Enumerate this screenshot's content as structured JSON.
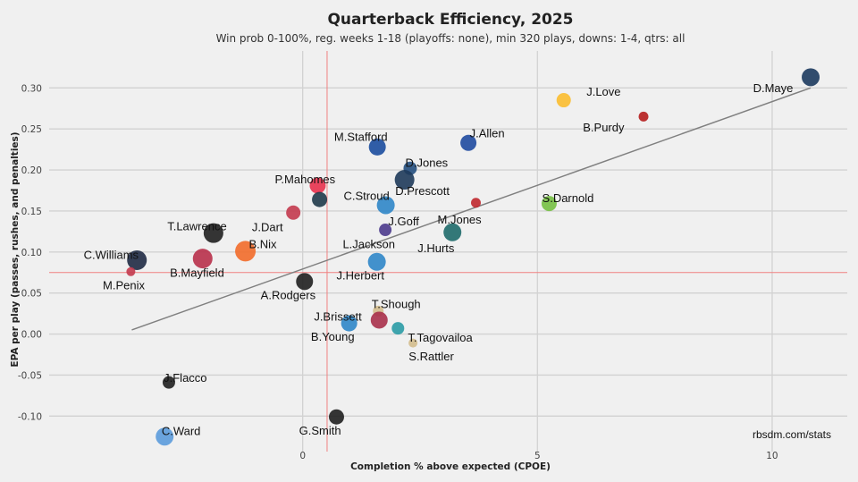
{
  "chart_data": {
    "type": "scatter",
    "title": "Quarterback Efficiency, 2025",
    "subtitle": "Win prob 0-100%, reg. weeks 1-18 (playoffs: none), min 320 plays, downs: 1-4, qtrs: all",
    "xlabel": "Completion % above expected (CPOE)",
    "ylabel": "EPA per play (passes, rushes, and penalties)",
    "xlim": [
      -5.4,
      11.6
    ],
    "ylim": [
      -0.152,
      0.345
    ],
    "xticks": [
      0,
      5,
      10
    ],
    "xtick_labels": [
      "0",
      "5",
      "10"
    ],
    "yticks": [
      0.3,
      0.25,
      0.2,
      0.15,
      0.1,
      0.05,
      0.0,
      -0.05,
      -0.1
    ],
    "ytick_labels": [
      "0.30",
      "0.25",
      "0.20",
      "0.15",
      "0.10",
      "0.05",
      "0.00",
      "-0.05",
      "-0.10"
    ],
    "grid": true,
    "mean_lines": {
      "x": 0.52,
      "y": 0.075,
      "color": "#f08080"
    },
    "trend_line": {
      "x": [
        -3.64,
        10.82
      ],
      "y": [
        0.005,
        0.3
      ],
      "color": "#808080"
    },
    "credit": "rbsdm.com/stats",
    "points": [
      {
        "name": "D.Maye",
        "x": 10.82,
        "y": 0.313,
        "color": "#1c3a5e",
        "size": 1.0,
        "lx": -0.8,
        "ly": -0.014,
        "anchor": "middle"
      },
      {
        "name": "J.Love",
        "x": 5.56,
        "y": 0.285,
        "color": "#fbbc2f",
        "size": 0.8,
        "lx": 0.85,
        "ly": 0.01,
        "anchor": "middle"
      },
      {
        "name": "B.Purdy",
        "x": 7.26,
        "y": 0.265,
        "color": "#b51c1c",
        "size": 0.55,
        "lx": -0.85,
        "ly": -0.014,
        "anchor": "middle"
      },
      {
        "name": "J.Allen",
        "x": 3.53,
        "y": 0.233,
        "color": "#1f4aa0",
        "size": 0.9,
        "lx": 0.4,
        "ly": 0.011,
        "anchor": "middle"
      },
      {
        "name": "M.Stafford",
        "x": 1.59,
        "y": 0.228,
        "color": "#1b4c9f",
        "size": 0.95,
        "lx": -0.35,
        "ly": 0.012,
        "anchor": "middle"
      },
      {
        "name": "D.Jones",
        "x": 2.29,
        "y": 0.202,
        "color": "#244f80",
        "size": 0.75,
        "lx": 0.35,
        "ly": 0.006,
        "anchor": "middle"
      },
      {
        "name": "D.Prescott",
        "x": 2.17,
        "y": 0.188,
        "color": "#1e3a5a",
        "size": 1.1,
        "lx": 0.38,
        "ly": -0.014,
        "anchor": "middle"
      },
      {
        "name": "P.Mahomes",
        "x": 0.32,
        "y": 0.181,
        "color": "#e8314d",
        "size": 0.9,
        "lx": -0.27,
        "ly": 0.007,
        "anchor": "middle"
      },
      {
        "name": "C.Stroud",
        "x": 0.36,
        "y": 0.164,
        "color": "#1f3a4a",
        "size": 0.85,
        "lx": 1.0,
        "ly": 0.004,
        "anchor": "middle"
      },
      {
        "name": "J.Goff",
        "x": 1.77,
        "y": 0.157,
        "color": "#2f86c8",
        "size": 1.0,
        "lx": 0.38,
        "ly": -0.02,
        "anchor": "middle"
      },
      {
        "name": "S.Darnold",
        "x": 5.25,
        "y": 0.159,
        "color": "#75c043",
        "size": 0.85,
        "lx": 0.4,
        "ly": 0.006,
        "anchor": "middle"
      },
      {
        "name": "M.Jones",
        "x": 3.69,
        "y": 0.16,
        "color": "#c0282d",
        "size": 0.55,
        "lx": -0.35,
        "ly": -0.021,
        "anchor": "middle"
      },
      {
        "name": "J.Dart",
        "x": -0.2,
        "y": 0.148,
        "color": "#c33a4e",
        "size": 0.8,
        "lx": -0.55,
        "ly": -0.018,
        "anchor": "middle"
      },
      {
        "name": "L.Jackson",
        "x": 1.76,
        "y": 0.127,
        "color": "#4b3a8c",
        "size": 0.7,
        "lx": -0.35,
        "ly": -0.018,
        "anchor": "middle"
      },
      {
        "name": "J.Hurts",
        "x": 3.19,
        "y": 0.124,
        "color": "#1e6a6a",
        "size": 1.0,
        "lx": -0.35,
        "ly": -0.02,
        "anchor": "middle"
      },
      {
        "name": "T.Lawrence",
        "x": -1.9,
        "y": 0.123,
        "color": "#1f1f1f",
        "size": 1.1,
        "lx": -0.35,
        "ly": 0.008,
        "anchor": "middle"
      },
      {
        "name": "B.Nix",
        "x": -1.22,
        "y": 0.101,
        "color": "#f26b2a",
        "size": 1.15,
        "lx": 0.37,
        "ly": 0.008,
        "anchor": "middle"
      },
      {
        "name": "C.Williams",
        "x": -3.53,
        "y": 0.09,
        "color": "#1f2a44",
        "size": 1.1,
        "lx": -0.55,
        "ly": 0.006,
        "anchor": "middle"
      },
      {
        "name": "B.Mayfield",
        "x": -2.13,
        "y": 0.092,
        "color": "#b8304a",
        "size": 1.1,
        "lx": -0.12,
        "ly": -0.018,
        "anchor": "middle"
      },
      {
        "name": "J.Herbert",
        "x": 1.58,
        "y": 0.088,
        "color": "#2f86c8",
        "size": 1.0,
        "lx": -0.35,
        "ly": -0.017,
        "anchor": "middle"
      },
      {
        "name": "M.Penix",
        "x": -3.66,
        "y": 0.076,
        "color": "#c33a4e",
        "size": 0.5,
        "lx": -0.15,
        "ly": -0.017,
        "anchor": "middle"
      },
      {
        "name": "A.Rodgers",
        "x": 0.04,
        "y": 0.064,
        "color": "#1f1f1f",
        "size": 0.95,
        "lx": -0.35,
        "ly": -0.017,
        "anchor": "middle"
      },
      {
        "name": "T.Shough",
        "x": 1.61,
        "y": 0.028,
        "color": "#d3bc8d",
        "size": 0.6,
        "lx": 0.38,
        "ly": 0.008,
        "anchor": "middle"
      },
      {
        "name": "J.Brissett",
        "x": 1.63,
        "y": 0.017,
        "color": "#a8304a",
        "size": 0.95,
        "lx": -0.88,
        "ly": 0.004,
        "anchor": "middle"
      },
      {
        "name": "B.Young",
        "x": 0.99,
        "y": 0.013,
        "color": "#2f86c8",
        "size": 0.9,
        "lx": -0.35,
        "ly": -0.017,
        "anchor": "middle"
      },
      {
        "name": "T.Tagovailoa",
        "x": 2.03,
        "y": 0.007,
        "color": "#2a9ba5",
        "size": 0.7,
        "lx": 0.9,
        "ly": -0.012,
        "anchor": "middle"
      },
      {
        "name": "S.Rattler",
        "x": 2.35,
        "y": -0.011,
        "color": "#d3bc8d",
        "size": 0.5,
        "lx": 0.39,
        "ly": -0.017,
        "anchor": "middle"
      },
      {
        "name": "J.Flacco",
        "x": -2.85,
        "y": -0.059,
        "color": "#1f1f1f",
        "size": 0.7,
        "lx": 0.35,
        "ly": 0.005,
        "anchor": "middle"
      },
      {
        "name": "G.Smith",
        "x": 0.72,
        "y": -0.101,
        "color": "#1f1f1f",
        "size": 0.85,
        "lx": -0.35,
        "ly": -0.017,
        "anchor": "middle"
      },
      {
        "name": "C.Ward",
        "x": -2.94,
        "y": -0.125,
        "color": "#5b9bdc",
        "size": 1.0,
        "lx": 0.35,
        "ly": 0.006,
        "anchor": "middle"
      }
    ]
  }
}
